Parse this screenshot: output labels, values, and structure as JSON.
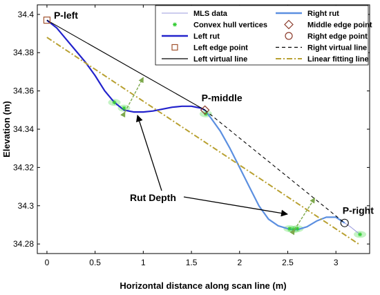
{
  "chart_data": {
    "type": "line",
    "xlabel": "Horizontal distance along scan line (m)",
    "ylabel": "Elevation (m)",
    "xlim": [
      -0.1,
      3.35
    ],
    "ylim": [
      34.275,
      34.405
    ],
    "x_ticks": [
      0,
      0.5,
      1,
      1.5,
      2,
      2.5,
      3
    ],
    "x_tick_labels": [
      "0",
      "0.5",
      "1",
      "1.5",
      "2",
      "2.5",
      "3"
    ],
    "y_ticks": [
      34.28,
      34.3,
      34.32,
      34.34,
      34.36,
      34.38,
      34.4
    ],
    "y_tick_labels": [
      "34.28",
      "34.3",
      "34.32",
      "34.34",
      "34.36",
      "34.38",
      "34.4"
    ],
    "grid": false,
    "legend_position": "top-right",
    "legend": [
      {
        "label": "MLS data",
        "key": "mls"
      },
      {
        "label": "Convex hull vertices",
        "key": "hull"
      },
      {
        "label": "Left rut",
        "key": "leftrut"
      },
      {
        "label": "Left edge point",
        "key": "leftedge"
      },
      {
        "label": "Left virtual line",
        "key": "leftvirtual"
      },
      {
        "label": "Right rut",
        "key": "rightrut"
      },
      {
        "label": "Middle edge point",
        "key": "middleedge"
      },
      {
        "label": "Right edge point",
        "key": "rightedge"
      },
      {
        "label": "Right virtual line",
        "key": "rightvirtual"
      },
      {
        "label": "Linear fitting line",
        "key": "linearfit"
      }
    ],
    "series": [
      {
        "name": "Left rut",
        "color": "#2222cc",
        "x": [
          0,
          0.1,
          0.2,
          0.3,
          0.4,
          0.5,
          0.6,
          0.7,
          0.8,
          0.9,
          1.0,
          1.1,
          1.2,
          1.3,
          1.4,
          1.5,
          1.6,
          1.64
        ],
        "y": [
          34.397,
          34.393,
          34.387,
          34.381,
          34.375,
          34.368,
          34.36,
          34.354,
          34.35,
          34.349,
          34.349,
          34.3495,
          34.3505,
          34.3515,
          34.352,
          34.352,
          34.351,
          34.35
        ]
      },
      {
        "name": "Right rut",
        "color": "#5b8fe0",
        "x": [
          1.64,
          1.7,
          1.8,
          1.9,
          2.0,
          2.1,
          2.2,
          2.3,
          2.4,
          2.5,
          2.55,
          2.6,
          2.7,
          2.8,
          2.9,
          3.0,
          3.09
        ],
        "y": [
          34.35,
          34.346,
          34.339,
          34.33,
          34.32,
          34.31,
          34.3,
          34.293,
          34.2895,
          34.288,
          34.2875,
          34.2875,
          34.289,
          34.292,
          34.294,
          34.294,
          34.291
        ]
      },
      {
        "name": "MLS data",
        "color": "#9999dd",
        "x": [
          3.09,
          3.15,
          3.2,
          3.25
        ],
        "y": [
          34.291,
          34.289,
          34.287,
          34.285
        ]
      },
      {
        "name": "Left virtual line",
        "color": "#000000",
        "x": [
          0,
          1.64
        ],
        "y": [
          34.397,
          34.35
        ]
      },
      {
        "name": "Right virtual line",
        "color": "#000000",
        "x": [
          1.64,
          3.09
        ],
        "y": [
          34.35,
          34.291
        ]
      },
      {
        "name": "Linear fitting line",
        "color": "#b8a030",
        "x": [
          0,
          3.25
        ],
        "y": [
          34.388,
          34.2795
        ]
      }
    ],
    "points": [
      {
        "label": "P-left",
        "x": 0,
        "y": 34.397
      },
      {
        "label": "P-middle",
        "x": 1.64,
        "y": 34.35
      },
      {
        "label": "P-right",
        "x": 3.09,
        "y": 34.291
      }
    ],
    "convex_hull_vertices": {
      "x": [
        0.7,
        0.8,
        1.65,
        2.52,
        2.56,
        2.6,
        3.25
      ],
      "y": [
        34.354,
        34.351,
        34.348,
        34.288,
        34.2875,
        34.288,
        34.285
      ]
    },
    "annotation": "Rut Depth",
    "colors": {
      "left_rut": "#2222cc",
      "right_rut": "#5b8fe0",
      "mls": "#9999dd",
      "linear_fit": "#b8a030",
      "hull": "#33cc33",
      "edge_marker": "#a0522d",
      "depth_arrow": "#7da84c"
    }
  }
}
